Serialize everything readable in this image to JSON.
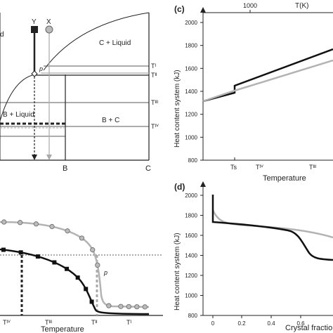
{
  "panel_a": {
    "region_liquid": "d",
    "region_c_liquid": "C + Liquid",
    "region_b_liquid": "B + Liquid",
    "region_b_c": "B + C",
    "point_y": "Y",
    "point_x": "X",
    "point_p": "p",
    "axis_b": "B",
    "axis_c": "C",
    "temps": [
      "Tᴵ",
      "Tᴵᴵ",
      "Tᴵᴵᴵ",
      "Tᴵⱽ"
    ]
  },
  "panel_b": {
    "xlabel": "Temperature",
    "ticks": [
      "Tᴵⱽ",
      "Tᴵᴵᴵ",
      "Tᴵᴵ",
      "Tᴵ"
    ],
    "point_p": "p"
  },
  "panel_c": {
    "letter": "(c)",
    "top_tick": "1000",
    "top_label": "T(K)",
    "ylabel": "Heat content system (kJ)",
    "xlabel": "Temperature",
    "yticks": [
      "2000",
      "1800",
      "1600",
      "1400",
      "1200",
      "1000",
      "800"
    ],
    "xticks": [
      "Ts",
      "Tᴵⱽ",
      "Tᴵᴵᴵ"
    ]
  },
  "panel_d": {
    "letter": "(d)",
    "ylabel": "Heat content system (kJ)",
    "xlabel": "Crystal fraction",
    "yticks": [
      "2000",
      "1800",
      "1600",
      "1400",
      "1200",
      "1000",
      "800"
    ],
    "xticks": [
      "0",
      "0.2",
      "0.4",
      "0.6"
    ]
  },
  "colors": {
    "black_line": "#111111",
    "gray_line": "#b3b3b3"
  }
}
